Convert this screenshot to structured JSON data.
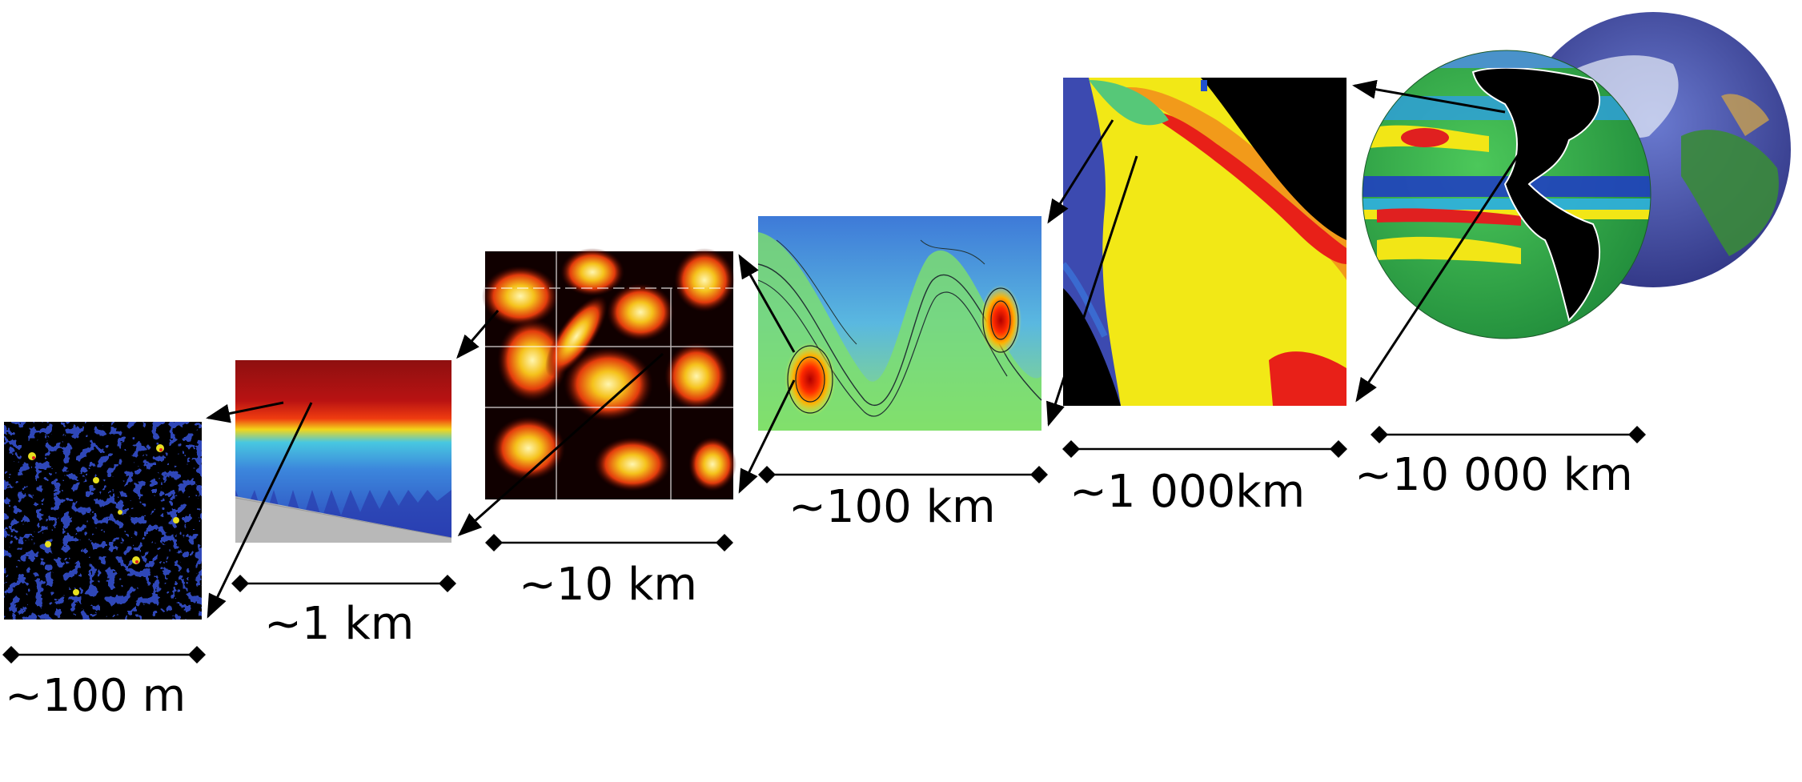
{
  "scales": [
    {
      "id": "100m",
      "label": "~100 m"
    },
    {
      "id": "1km",
      "label": "~1 km"
    },
    {
      "id": "10km",
      "label": "~10 km"
    },
    {
      "id": "100km",
      "label": "~100 km"
    },
    {
      "id": "1000km",
      "label": "~1 000km"
    },
    {
      "id": "10000km",
      "label": "~10 000 km"
    }
  ],
  "colors": {
    "deep_blue": "#2b3fb0",
    "blue": "#3d5fd8",
    "cyan": "#5ad0e8",
    "green": "#3cbf5a",
    "yellow": "#f2e616",
    "orange": "#f28a1a",
    "red": "#e01818",
    "dark_red": "#8e1010",
    "black": "#000000"
  }
}
